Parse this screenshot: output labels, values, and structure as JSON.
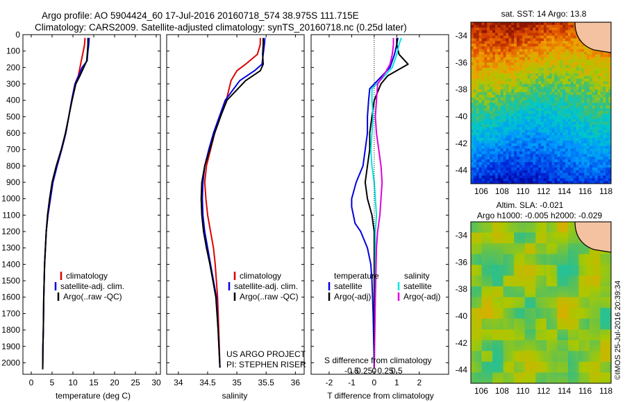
{
  "figure": {
    "title_line1": "Argo profile: AO 5904424_60 17-Jul-2016 20160718_574 38.975S 111.715E",
    "title_line2": "Climatology: CARS2009. Satellite-adjusted climatology: synTS_20160718.nc (0.25d later)",
    "credit": "©IMOS 25-Jul-2016 20:39:34"
  },
  "colors": {
    "climatology": "#dd0000",
    "satellite": "#0000dd",
    "argo": "#000000",
    "salinity_satellite": "#00e5e5",
    "salinity_argo": "#dd00dd",
    "land": "#f4c2a0"
  },
  "chart_data": [
    {
      "id": "temperature",
      "type": "line",
      "xlabel": "temperature (deg C)",
      "ylabel": "",
      "xlim": [
        -2,
        31
      ],
      "ylim": [
        2070,
        0
      ],
      "xticks": [
        0,
        5,
        10,
        15,
        20,
        25,
        30
      ],
      "xtick_labels": [
        "0",
        "5",
        "10",
        "15",
        "20",
        "25",
        "30"
      ],
      "yticks": [
        0,
        100,
        200,
        300,
        400,
        500,
        600,
        700,
        800,
        900,
        1000,
        1100,
        1200,
        1300,
        1400,
        1500,
        1600,
        1700,
        1800,
        1900,
        2000
      ],
      "ytick_labels": [
        "0",
        "100",
        "200",
        "300",
        "400",
        "500",
        "600",
        "700",
        "800",
        "900",
        "1000",
        "1100",
        "1200",
        "1300",
        "1400",
        "1500",
        "1600",
        "1700",
        "1800",
        "1900",
        "2000"
      ],
      "legend": [
        "climatology",
        "satellite-adj. clim.",
        "Argo(..raw -QC)"
      ],
      "series": [
        {
          "name": "climatology",
          "color": "#dd0000",
          "x": [
            12.9,
            12.8,
            12.5,
            12.0,
            11.7,
            11.3,
            10.5,
            9.7,
            9.0,
            8.3,
            7.3,
            6.2,
            5.2,
            4.6,
            4.0,
            3.6,
            3.4,
            3.2,
            3.1,
            3.0,
            2.9,
            2.8,
            2.75
          ],
          "y": [
            20,
            60,
            100,
            160,
            200,
            250,
            300,
            400,
            500,
            600,
            700,
            800,
            900,
            1000,
            1100,
            1200,
            1300,
            1400,
            1500,
            1600,
            1800,
            1900,
            2040
          ]
        },
        {
          "name": "satellite-adj. clim.",
          "color": "#0000dd",
          "x": [
            13.9,
            13.8,
            13.6,
            13.4,
            12.2,
            11.4,
            10.5,
            9.7,
            9.0,
            8.3,
            7.3,
            6.2,
            5.2,
            4.6,
            4.0,
            3.6,
            3.4,
            3.2,
            3.1,
            3.0,
            2.9,
            2.8,
            2.75
          ],
          "y": [
            20,
            60,
            100,
            160,
            200,
            250,
            300,
            400,
            500,
            600,
            700,
            800,
            900,
            1000,
            1100,
            1200,
            1300,
            1400,
            1500,
            1600,
            1800,
            1900,
            2040
          ]
        },
        {
          "name": "Argo(..raw -QC)",
          "color": "#000000",
          "x": [
            13.6,
            13.6,
            13.5,
            13.3,
            12.6,
            11.7,
            10.7,
            9.8,
            9.0,
            8.2,
            7.2,
            6.0,
            5.0,
            4.4,
            3.9,
            3.6,
            3.4,
            3.2,
            3.1,
            3.0,
            2.9,
            2.8,
            2.75
          ],
          "y": [
            20,
            60,
            100,
            160,
            200,
            250,
            300,
            400,
            500,
            600,
            700,
            800,
            900,
            1000,
            1100,
            1200,
            1300,
            1400,
            1500,
            1600,
            1800,
            1900,
            2040
          ]
        }
      ]
    },
    {
      "id": "salinity",
      "type": "line",
      "xlabel": "salinity",
      "ylabel": "",
      "xlim": [
        33.8,
        36.15
      ],
      "ylim": [
        2070,
        0
      ],
      "xticks": [
        34,
        34.5,
        35,
        35.5,
        36
      ],
      "xtick_labels": [
        "34",
        "34.5",
        "35",
        "35.5",
        "36"
      ],
      "legend": [
        "climatology",
        "satellite-adj. clim.",
        "Argo(..raw -QC)"
      ],
      "annotation_line1": "US ARGO PROJECT",
      "annotation_line2": "PI: STEPHEN RISER",
      "series": [
        {
          "name": "climatology",
          "color": "#dd0000",
          "x": [
            35.4,
            35.4,
            35.35,
            35.15,
            35.0,
            34.9,
            34.82,
            34.72,
            34.62,
            34.55,
            34.48,
            34.45,
            34.47,
            34.5,
            34.55,
            34.6,
            34.63,
            34.65,
            34.67,
            34.69,
            34.71
          ],
          "y": [
            20,
            60,
            120,
            180,
            220,
            280,
            400,
            500,
            600,
            700,
            800,
            900,
            1000,
            1100,
            1200,
            1300,
            1400,
            1500,
            1600,
            1800,
            2030
          ]
        },
        {
          "name": "satellite-adj. clim.",
          "color": "#0000dd",
          "x": [
            35.48,
            35.47,
            35.45,
            35.43,
            35.3,
            35.05,
            34.8,
            34.7,
            34.6,
            34.52,
            34.45,
            34.42,
            34.41,
            34.42,
            34.45,
            34.5,
            34.55,
            34.6,
            34.65,
            34.68,
            34.71
          ],
          "y": [
            20,
            60,
            120,
            180,
            220,
            280,
            400,
            500,
            600,
            700,
            800,
            900,
            1000,
            1100,
            1200,
            1300,
            1400,
            1500,
            1600,
            1800,
            2030
          ]
        },
        {
          "name": "Argo(..raw -QC)",
          "color": "#000000",
          "x": [
            35.45,
            35.45,
            35.44,
            35.45,
            35.4,
            35.15,
            34.83,
            34.72,
            34.62,
            34.54,
            34.45,
            34.4,
            34.39,
            34.4,
            34.43,
            34.48,
            34.54,
            34.59,
            34.64,
            34.68,
            34.71
          ],
          "y": [
            20,
            60,
            120,
            180,
            220,
            280,
            400,
            500,
            600,
            700,
            800,
            900,
            1000,
            1100,
            1200,
            1300,
            1400,
            1500,
            1600,
            1800,
            2030
          ]
        }
      ]
    },
    {
      "id": "difference",
      "type": "line",
      "xlabel": "T difference from climatology",
      "top_label": "S difference from climatology",
      "xlim": [
        -2.8,
        3.3
      ],
      "ylim": [
        2070,
        0
      ],
      "xticks": [
        -2,
        -1,
        0,
        1,
        2
      ],
      "xtick_labels": [
        "-2",
        "-1",
        "0",
        "1",
        "2"
      ],
      "s_ticks": [
        -0.5,
        -0.25,
        0,
        0.25,
        0.5
      ],
      "s_tick_labels": [
        "-0.5",
        "-0.25",
        "0",
        "0.25",
        "0.5"
      ],
      "legend_temperature_title": "temperature",
      "legend_salinity_title": "salinity",
      "legend_satellite": "satellite",
      "legend_argo": "Argo(-adj)",
      "series": [
        {
          "name": "temperature satellite",
          "color": "#0000dd",
          "x": [
            1.05,
            1.0,
            0.9,
            0.7,
            -0.2,
            -0.25,
            -0.3,
            -0.3,
            -0.4,
            -0.5,
            -0.8,
            -1.0,
            -1.0,
            -0.85,
            -0.6,
            -0.3,
            -0.15,
            -0.1,
            -0.05,
            0.0
          ],
          "y": [
            20,
            60,
            120,
            200,
            330,
            400,
            500,
            600,
            700,
            800,
            900,
            1000,
            1050,
            1150,
            1200,
            1300,
            1400,
            1500,
            1700,
            2030
          ]
        },
        {
          "name": "temperature Argo",
          "color": "#000000",
          "x": [
            1.0,
            1.0,
            1.1,
            1.5,
            0.6,
            0.3,
            0.0,
            -0.1,
            -0.2,
            -0.2,
            -0.3,
            -0.4,
            -0.3,
            -0.1,
            0.0,
            0.0,
            0.0,
            0.0,
            0.0
          ],
          "y": [
            20,
            60,
            120,
            180,
            250,
            300,
            400,
            500,
            600,
            700,
            800,
            900,
            1000,
            1100,
            1200,
            1300,
            1500,
            1800,
            2030
          ]
        },
        {
          "name": "salinity satellite",
          "color": "#00e5e5",
          "x": [
            1.2,
            1.1,
            1.0,
            0.8,
            0.4,
            -0.1,
            -0.1,
            -0.05,
            -0.1,
            -0.15,
            -0.1,
            0.0,
            0.05,
            0.1,
            0.05,
            0.05,
            0.0
          ],
          "y": [
            20,
            60,
            120,
            200,
            260,
            330,
            400,
            500,
            600,
            700,
            800,
            900,
            1000,
            1100,
            1200,
            1500,
            2030
          ]
        },
        {
          "name": "salinity Argo",
          "color": "#dd00dd",
          "x": [
            0.85,
            0.85,
            0.8,
            0.7,
            0.5,
            0.15,
            0.1,
            0.05,
            0.1,
            0.2,
            0.3,
            0.35,
            0.3,
            0.25,
            0.15,
            0.1,
            0.05,
            0.0
          ],
          "y": [
            20,
            60,
            120,
            180,
            230,
            300,
            400,
            500,
            600,
            700,
            800,
            900,
            1000,
            1100,
            1200,
            1300,
            1600,
            2030
          ]
        }
      ]
    },
    {
      "id": "sst_map",
      "type": "heatmap",
      "title": "sat. SST: 14 Argo: 13.8",
      "xlim": [
        105,
        118.5
      ],
      "ylim": [
        -45,
        -33
      ],
      "xticks": [
        106,
        108,
        110,
        112,
        114,
        116,
        118
      ],
      "xtick_labels": [
        "106",
        "108",
        "110",
        "112",
        "114",
        "116",
        "118"
      ],
      "yticks": [
        -34,
        -36,
        -38,
        -40,
        -42,
        -44
      ],
      "ytick_labels": [
        "-34",
        "-36",
        "-38",
        "-40",
        "-42",
        "-44"
      ],
      "marker_lon": 111.715,
      "marker_lat": -38.975
    },
    {
      "id": "sla_map",
      "type": "heatmap",
      "title_line1": "Altim. SLA: -0.021",
      "title_line2": "Argo h1000: -0.005 h2000: -0.029",
      "xlim": [
        105,
        118.5
      ],
      "ylim": [
        -45,
        -33
      ],
      "xticks": [
        106,
        108,
        110,
        112,
        114,
        116,
        118
      ],
      "xtick_labels": [
        "106",
        "108",
        "110",
        "112",
        "114",
        "116",
        "118"
      ],
      "yticks": [
        -34,
        -36,
        -38,
        -40,
        -42,
        -44
      ],
      "ytick_labels": [
        "-34",
        "-36",
        "-38",
        "-40",
        "-42",
        "-44"
      ],
      "marker_lon": 111.715,
      "marker_lat": -38.975
    }
  ]
}
